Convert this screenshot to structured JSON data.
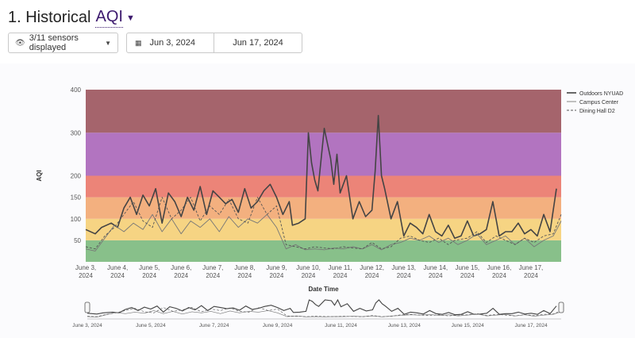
{
  "header": {
    "title_prefix": "1. Historical",
    "metric": "AQI"
  },
  "controls": {
    "sensors_label": "3/11 sensors displayed",
    "start_date": "Jun 3, 2024",
    "end_date": "Jun 17, 2024"
  },
  "icons": {
    "sensors": "eye-icon",
    "calendar": "calendar-icon",
    "dropdown": "chevron-down-icon"
  },
  "chart_data": {
    "type": "line",
    "xlabel": "Date Time",
    "ylabel": "AQI",
    "ylim": [
      0,
      400
    ],
    "yticks": [
      50,
      100,
      150,
      200,
      300,
      400
    ],
    "xticks": [
      "June 3,\n2024",
      "June 4,\n2024",
      "June 5,\n2024",
      "June 6,\n2024",
      "June 7,\n2024",
      "June 8,\n2024",
      "June 9,\n2024",
      "June 10,\n2024",
      "June 11,\n2024",
      "June 12,\n2024",
      "June 13,\n2024",
      "June 14,\n2024",
      "June 15,\n2024",
      "June 16,\n2024",
      "June 17,\n2024"
    ],
    "aqi_bands": [
      {
        "from": 0,
        "to": 50,
        "color": "#88c08a"
      },
      {
        "from": 50,
        "to": 100,
        "color": "#f6d483"
      },
      {
        "from": 100,
        "to": 150,
        "color": "#f3b07f"
      },
      {
        "from": 150,
        "to": 200,
        "color": "#ec8478"
      },
      {
        "from": 200,
        "to": 300,
        "color": "#b274c0"
      },
      {
        "from": 300,
        "to": 400,
        "color": "#a5646c"
      }
    ],
    "series": [
      {
        "name": "Outdoors NYUAD",
        "style": "solid-thick",
        "color": "#444444",
        "x": [
          0,
          0.3,
          0.5,
          0.8,
          1,
          1.2,
          1.4,
          1.6,
          1.8,
          2,
          2.2,
          2.4,
          2.6,
          2.8,
          3,
          3.2,
          3.4,
          3.6,
          3.8,
          4,
          4.2,
          4.4,
          4.6,
          4.8,
          5,
          5.2,
          5.4,
          5.6,
          5.8,
          6,
          6.2,
          6.4,
          6.5,
          6.7,
          6.9,
          7,
          7.1,
          7.2,
          7.3,
          7.5,
          7.7,
          7.8,
          7.9,
          8,
          8.2,
          8.4,
          8.6,
          8.8,
          9,
          9.1,
          9.2,
          9.3,
          9.4,
          9.6,
          9.8,
          10,
          10.2,
          10.4,
          10.6,
          10.8,
          11,
          11.2,
          11.4,
          11.6,
          11.8,
          12,
          12.2,
          12.4,
          12.6,
          12.8,
          13,
          13.2,
          13.4,
          13.6,
          13.8,
          14,
          14.2,
          14.4,
          14.6,
          14.8
        ],
        "y": [
          75,
          65,
          80,
          90,
          80,
          125,
          150,
          110,
          155,
          130,
          170,
          90,
          160,
          140,
          105,
          150,
          120,
          175,
          110,
          165,
          150,
          135,
          145,
          115,
          170,
          125,
          140,
          165,
          180,
          150,
          110,
          140,
          85,
          90,
          100,
          300,
          230,
          190,
          165,
          310,
          240,
          180,
          250,
          160,
          200,
          100,
          140,
          105,
          120,
          210,
          340,
          200,
          170,
          100,
          140,
          60,
          90,
          80,
          65,
          110,
          70,
          60,
          85,
          55,
          60,
          95,
          60,
          65,
          75,
          140,
          60,
          70,
          70,
          90,
          65,
          75,
          60,
          110,
          70,
          170
        ],
        "x_end_extra": [
          14.95
        ],
        "y_end_extra": [
          165
        ]
      },
      {
        "name": "Campus Center",
        "style": "solid-thin",
        "color": "#777777",
        "x": [
          0,
          0.3,
          0.6,
          0.9,
          1.2,
          1.5,
          1.8,
          2.1,
          2.4,
          2.7,
          3,
          3.3,
          3.6,
          3.9,
          4.2,
          4.5,
          4.8,
          5.1,
          5.4,
          5.7,
          6,
          6.3,
          6.6,
          6.9,
          7.2,
          7.5,
          7.8,
          8.1,
          8.4,
          8.7,
          9,
          9.3,
          9.6,
          9.9,
          10.2,
          10.5,
          10.8,
          11.1,
          11.4,
          11.7,
          12,
          12.3,
          12.6,
          12.9,
          13.2,
          13.5,
          13.8,
          14.1,
          14.4,
          14.7,
          14.95
        ],
        "y": [
          30,
          25,
          55,
          85,
          70,
          90,
          75,
          110,
          70,
          100,
          65,
          95,
          80,
          100,
          70,
          105,
          80,
          100,
          90,
          110,
          80,
          30,
          40,
          28,
          30,
          28,
          32,
          30,
          35,
          30,
          40,
          28,
          40,
          45,
          55,
          50,
          60,
          45,
          55,
          40,
          50,
          65,
          40,
          50,
          60,
          40,
          55,
          35,
          50,
          60,
          95
        ]
      },
      {
        "name": "Dining Hall D2",
        "style": "dashed",
        "color": "#555555",
        "x": [
          0,
          0.3,
          0.6,
          0.9,
          1.2,
          1.5,
          1.8,
          2.1,
          2.4,
          2.7,
          3,
          3.3,
          3.6,
          3.9,
          4.2,
          4.5,
          4.8,
          5.1,
          5.4,
          5.7,
          6,
          6.3,
          6.6,
          6.9,
          7.2,
          7.5,
          7.8,
          8.1,
          8.4,
          8.7,
          9,
          9.3,
          9.6,
          9.9,
          10.2,
          10.5,
          10.8,
          11.1,
          11.4,
          11.6,
          12,
          12.3,
          12.6,
          12.9,
          13.2,
          13.5,
          13.8,
          14.1,
          14.4,
          14.7,
          14.95
        ],
        "y": [
          35,
          30,
          60,
          80,
          110,
          140,
          95,
          80,
          150,
          100,
          120,
          150,
          95,
          130,
          110,
          145,
          100,
          90,
          150,
          110,
          130,
          40,
          35,
          30,
          35,
          32,
          30,
          35,
          32,
          30,
          45,
          30,
          35,
          55,
          60,
          50,
          45,
          55,
          40,
          50,
          55,
          70,
          45,
          60,
          50,
          40,
          55,
          45,
          60,
          65,
          110
        ]
      }
    ],
    "legend_position": "top-right",
    "navigator": {
      "labels": [
        "June 3, 2024",
        "June 5, 2024",
        "June 7, 2024",
        "June 9, 2024",
        "June 11, 2024",
        "June 13, 2024",
        "June 15, 2024",
        "June 17, 2024"
      ]
    }
  }
}
